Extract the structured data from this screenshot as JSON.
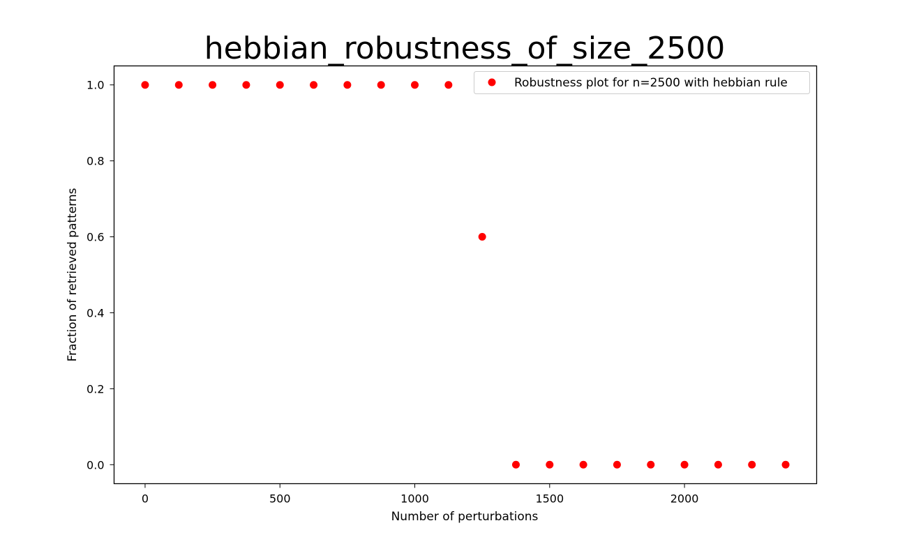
{
  "chart_data": {
    "type": "scatter",
    "title": "hebbian_robustness_of_size_2500",
    "xlabel": "Number of perturbations",
    "ylabel": "Fraction of retrieved patterns",
    "xlim": [
      -115,
      2490
    ],
    "ylim": [
      -0.05,
      1.05
    ],
    "xticks": [
      0,
      500,
      1000,
      1500,
      2000
    ],
    "xtick_labels": [
      "0",
      "500",
      "1000",
      "1500",
      "2000"
    ],
    "yticks": [
      0.0,
      0.2,
      0.4,
      0.6,
      0.8,
      1.0
    ],
    "ytick_labels": [
      "0.0",
      "0.2",
      "0.4",
      "0.6",
      "0.8",
      "1.0"
    ],
    "grid": false,
    "legend_position": "top-right",
    "series": [
      {
        "name": "Robustness plot for n=2500 with hebbian rule",
        "color": "#ff0000",
        "marker": "circle",
        "x": [
          0,
          125,
          250,
          375,
          500,
          625,
          750,
          875,
          1000,
          1125,
          1250,
          1375,
          1500,
          1625,
          1750,
          1875,
          2000,
          2125,
          2250,
          2375
        ],
        "y": [
          1.0,
          1.0,
          1.0,
          1.0,
          1.0,
          1.0,
          1.0,
          1.0,
          1.0,
          1.0,
          0.6,
          0.0,
          0.0,
          0.0,
          0.0,
          0.0,
          0.0,
          0.0,
          0.0,
          0.0
        ]
      }
    ]
  }
}
